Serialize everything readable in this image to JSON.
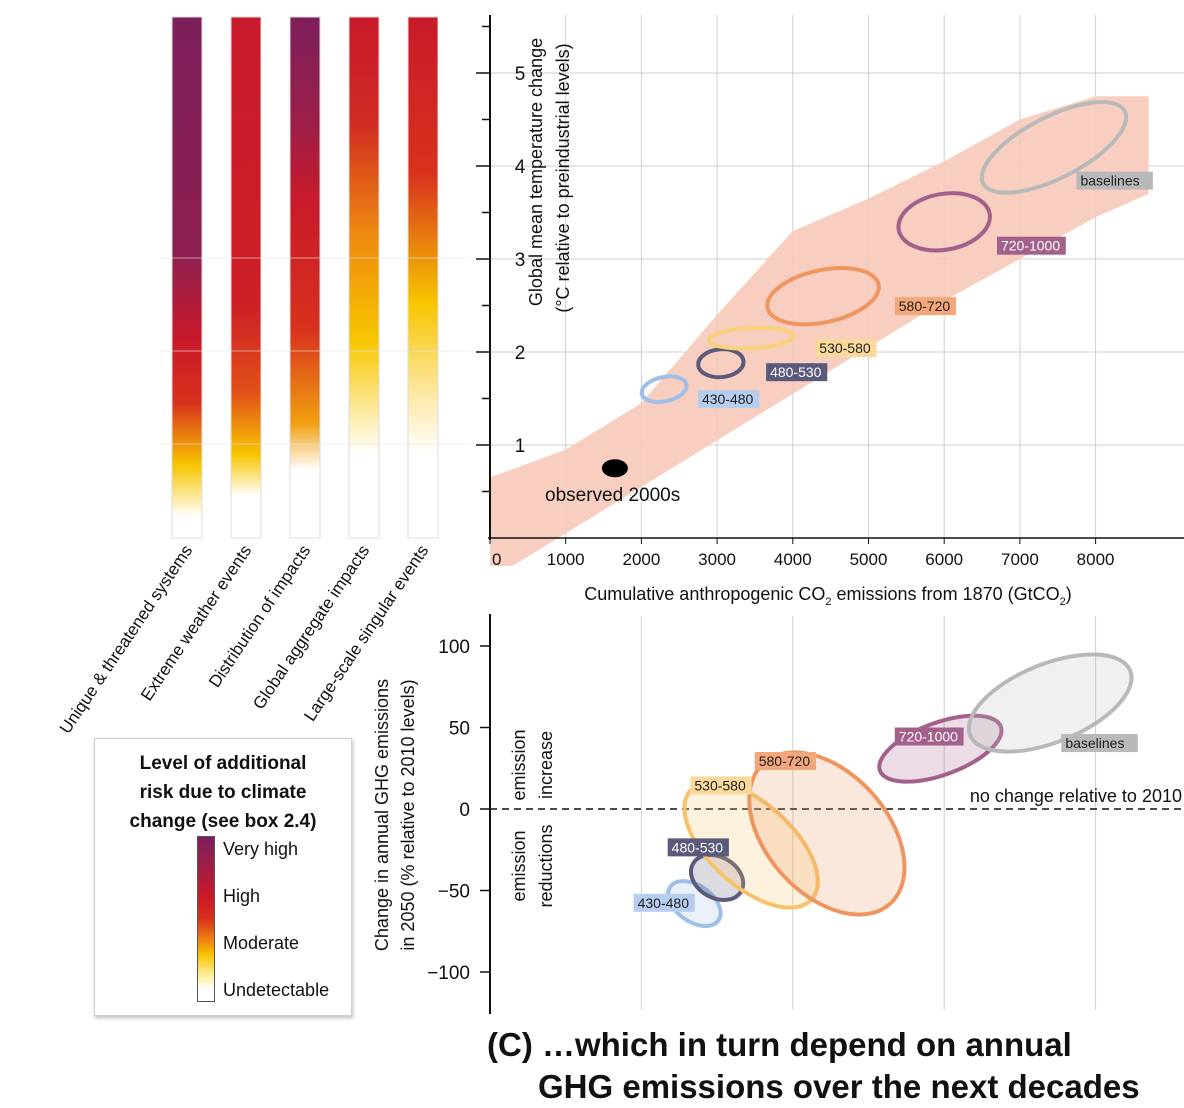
{
  "risk_legend": {
    "title_lines": [
      "Level of additional",
      "risk due to climate",
      "change (see box 2.4)"
    ],
    "levels": [
      "Very high",
      "High",
      "Moderate",
      "Undetectable"
    ],
    "colors": {
      "very_high": "#7d1f5d",
      "high": "#c81a2a",
      "moderate": "#f7c600",
      "undetectable": "#ffffff"
    }
  },
  "reasons_for_concern": [
    {
      "label": "Unique & threatened systems",
      "gradient": [
        [
          0.0,
          "#7d1f5d"
        ],
        [
          0.45,
          "#8c1f50"
        ],
        [
          0.62,
          "#c81a2a"
        ],
        [
          0.74,
          "#d8321d"
        ],
        [
          0.86,
          "#f7c600"
        ],
        [
          0.96,
          "#ffffff"
        ]
      ]
    },
    {
      "label": "Extreme weather events",
      "gradient": [
        [
          0.0,
          "#c81a2a"
        ],
        [
          0.55,
          "#cc1f26"
        ],
        [
          0.72,
          "#e2501a"
        ],
        [
          0.84,
          "#f7c600"
        ],
        [
          0.92,
          "#ffffff"
        ]
      ]
    },
    {
      "label": "Distribution of impacts",
      "gradient": [
        [
          0.0,
          "#7d1f5d"
        ],
        [
          0.2,
          "#9b1f4a"
        ],
        [
          0.35,
          "#c81a2a"
        ],
        [
          0.6,
          "#d8321d"
        ],
        [
          0.78,
          "#f0a010"
        ],
        [
          0.87,
          "#ffffff"
        ]
      ]
    },
    {
      "label": "Global aggregate impacts",
      "gradient": [
        [
          0.0,
          "#c81a2a"
        ],
        [
          0.2,
          "#d02a22"
        ],
        [
          0.42,
          "#ef8a10"
        ],
        [
          0.62,
          "#f7c600"
        ],
        [
          0.84,
          "#ffffff"
        ]
      ]
    },
    {
      "label": "Large-scale singular events",
      "gradient": [
        [
          0.0,
          "#c81a2a"
        ],
        [
          0.3,
          "#d8321d"
        ],
        [
          0.55,
          "#f7c600"
        ],
        [
          0.72,
          "#fde7a0"
        ],
        [
          0.84,
          "#ffffff"
        ]
      ]
    }
  ],
  "chart_data": [
    {
      "type": "scatter",
      "title": "",
      "xlabel": "Cumulative anthropogenic CO2 emissions from 1870 (GtCO2)",
      "xlabel_parts": {
        "a": "Cumulative anthropogenic CO",
        "sub1": "2",
        "b": " emissions from 1870 (GtCO",
        "sub2": "2",
        "c": ")"
      },
      "ylabel_lines": [
        "Global mean temperature change",
        "(°C relative to preindustrial levels)"
      ],
      "xlim": [
        0,
        9000
      ],
      "ylim": [
        0,
        5.6
      ],
      "xticks": [
        0,
        1000,
        2000,
        3000,
        4000,
        5000,
        6000,
        7000,
        8000
      ],
      "xtick_labels": [
        "0",
        "1000",
        "2000",
        "3000",
        "4000",
        "5000",
        "6000",
        "7000",
        "8000"
      ],
      "yticks": [
        1,
        2,
        3,
        4,
        5
      ],
      "ytick_labels": [
        "1",
        "2",
        "3",
        "4",
        "5"
      ],
      "grid": true,
      "uncertainty_band": {
        "color": "#f6c9b8",
        "upper": [
          [
            0,
            0.65
          ],
          [
            1000,
            0.95
          ],
          [
            2000,
            1.45
          ],
          [
            3000,
            2.4
          ],
          [
            4000,
            3.3
          ],
          [
            5000,
            3.65
          ],
          [
            6000,
            4.05
          ],
          [
            7000,
            4.5
          ],
          [
            8000,
            4.75
          ],
          [
            8700,
            4.75
          ]
        ],
        "lower": [
          [
            8700,
            3.7
          ],
          [
            8000,
            3.45
          ],
          [
            7000,
            3.0
          ],
          [
            6000,
            2.55
          ],
          [
            5000,
            2.05
          ],
          [
            4000,
            1.55
          ],
          [
            3000,
            1.05
          ],
          [
            2000,
            0.55
          ],
          [
            1000,
            0.05
          ],
          [
            300,
            -0.3
          ],
          [
            0,
            -0.3
          ]
        ]
      },
      "observed": {
        "x": 1650,
        "y": 0.75,
        "label": "observed 2000s"
      },
      "scenarios": [
        {
          "name": "430-480",
          "cx": 2300,
          "cy": 1.6,
          "rx": 300,
          "ry": 0.13,
          "rot": -12,
          "color": "#9fbfe8",
          "label_bg": "#b7cdf0",
          "label_fg": "#1f1f1f",
          "lx": 2800,
          "ly": 1.45
        },
        {
          "name": "480-530",
          "cx": 3050,
          "cy": 1.88,
          "rx": 300,
          "ry": 0.15,
          "rot": -5,
          "color": "#5c5a7a",
          "label_bg": "#5c5a7a",
          "label_fg": "#ffffff",
          "lx": 3700,
          "ly": 1.74
        },
        {
          "name": "530-580",
          "cx": 3450,
          "cy": 2.15,
          "rx": 560,
          "ry": 0.11,
          "rot": -3,
          "color": "#f7d27a",
          "label_bg": "#fbd99a",
          "label_fg": "#1f1f1f",
          "lx": 4350,
          "ly": 2.0
        },
        {
          "name": "580-720",
          "cx": 4400,
          "cy": 2.6,
          "rx": 750,
          "ry": 0.28,
          "rot": -12,
          "color": "#ef9660",
          "label_bg": "#f3a77a",
          "label_fg": "#1f1f1f",
          "lx": 5400,
          "ly": 2.45
        },
        {
          "name": "720-1000",
          "cx": 6000,
          "cy": 3.4,
          "rx": 610,
          "ry": 0.3,
          "rot": -10,
          "color": "#a2608a",
          "label_bg": "#a2608a",
          "label_fg": "#ffffff",
          "lx": 6750,
          "ly": 3.1
        },
        {
          "name": "baselines",
          "cx": 7450,
          "cy": 4.2,
          "rx": 1050,
          "ry": 0.33,
          "rot": -27,
          "color": "#b9b9b9",
          "label_bg": "#b9b9b9",
          "label_fg": "#1f1f1f",
          "lx": 7800,
          "ly": 3.8
        }
      ]
    },
    {
      "type": "scatter",
      "title": "",
      "ylabel_lines": [
        "Change in annual GHG emissions",
        "in 2050 (% relative to 2010 levels)"
      ],
      "ylim": [
        -120,
        120
      ],
      "yticks": [
        -100,
        -50,
        0,
        50,
        100
      ],
      "ytick_labels": [
        "−100",
        "−50",
        "0",
        "50",
        "100"
      ],
      "grid": true,
      "reference_line": {
        "y": 0,
        "label": "no change relative to 2010",
        "style": "dashed"
      },
      "region_labels": {
        "above": [
          "emission",
          "increase"
        ],
        "below": [
          "emission",
          "reductions"
        ]
      },
      "scenarios": [
        {
          "name": "430-480",
          "cx": 2700,
          "cy": -58,
          "rx": 240,
          "ry": 18,
          "rot": -55,
          "color": "#9fbfe8",
          "label_bg": "#b7cdf0",
          "label_fg": "#1f1f1f",
          "lx": 1950,
          "ly": -60
        },
        {
          "name": "480-530",
          "cx": 3000,
          "cy": -42,
          "rx": 270,
          "ry": 17,
          "rot": -60,
          "color": "#5c5a7a",
          "label_bg": "#5c5a7a",
          "label_fg": "#ffffff",
          "lx": 2400,
          "ly": -26
        },
        {
          "name": "530-580",
          "cx": 3450,
          "cy": -22,
          "rx": 550,
          "ry": 50,
          "rot": -48,
          "color": "#f7c36a",
          "label_bg": "#fbd99a",
          "label_fg": "#1f1f1f",
          "lx": 2700,
          "ly": 12
        },
        {
          "name": "580-720",
          "cx": 4450,
          "cy": -15,
          "rx": 800,
          "ry": 58,
          "rot": -42,
          "color": "#ef9660",
          "label_bg": "#f3a77a",
          "label_fg": "#1f1f1f",
          "lx": 3550,
          "ly": 27
        },
        {
          "name": "720-1000",
          "cx": 5950,
          "cy": 37,
          "rx": 850,
          "ry": 16,
          "rot": -20,
          "color": "#a2608a",
          "label_bg": "#a2608a",
          "label_fg": "#ffffff",
          "lx": 5400,
          "ly": 42
        },
        {
          "name": "baselines",
          "cx": 7400,
          "cy": 65,
          "rx": 1140,
          "ry": 24,
          "rot": -22,
          "color": "#b9b9b9",
          "label_bg": "#b9b9b9",
          "label_fg": "#1f1f1f",
          "lx": 7600,
          "ly": 38
        }
      ]
    }
  ],
  "caption_lines": [
    "(C) …which in turn depend on annual",
    "GHG emissions over the next decades"
  ]
}
